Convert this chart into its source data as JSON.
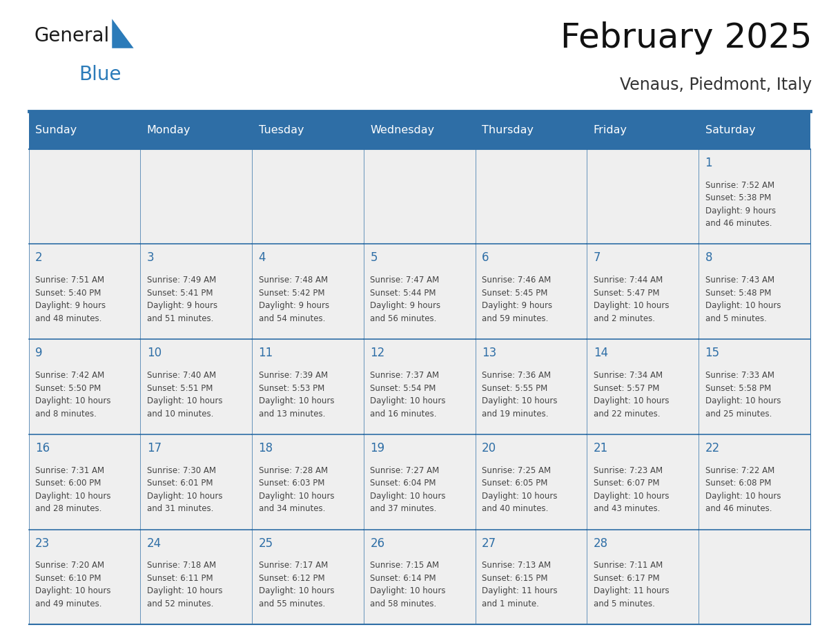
{
  "title": "February 2025",
  "subtitle": "Venaus, Piedmont, Italy",
  "days_of_week": [
    "Sunday",
    "Monday",
    "Tuesday",
    "Wednesday",
    "Thursday",
    "Friday",
    "Saturday"
  ],
  "header_bg_color": "#2E6EA6",
  "header_text_color": "#FFFFFF",
  "cell_bg_color": "#EFEFEF",
  "border_color": "#2E6EA6",
  "day_number_color": "#2E6EA6",
  "text_color": "#444444",
  "logo_general_color": "#1a1a1a",
  "logo_blue_color": "#2B7BB9",
  "calendar_data": [
    [
      {
        "day": null,
        "info": null
      },
      {
        "day": null,
        "info": null
      },
      {
        "day": null,
        "info": null
      },
      {
        "day": null,
        "info": null
      },
      {
        "day": null,
        "info": null
      },
      {
        "day": null,
        "info": null
      },
      {
        "day": 1,
        "info": "Sunrise: 7:52 AM\nSunset: 5:38 PM\nDaylight: 9 hours\nand 46 minutes."
      }
    ],
    [
      {
        "day": 2,
        "info": "Sunrise: 7:51 AM\nSunset: 5:40 PM\nDaylight: 9 hours\nand 48 minutes."
      },
      {
        "day": 3,
        "info": "Sunrise: 7:49 AM\nSunset: 5:41 PM\nDaylight: 9 hours\nand 51 minutes."
      },
      {
        "day": 4,
        "info": "Sunrise: 7:48 AM\nSunset: 5:42 PM\nDaylight: 9 hours\nand 54 minutes."
      },
      {
        "day": 5,
        "info": "Sunrise: 7:47 AM\nSunset: 5:44 PM\nDaylight: 9 hours\nand 56 minutes."
      },
      {
        "day": 6,
        "info": "Sunrise: 7:46 AM\nSunset: 5:45 PM\nDaylight: 9 hours\nand 59 minutes."
      },
      {
        "day": 7,
        "info": "Sunrise: 7:44 AM\nSunset: 5:47 PM\nDaylight: 10 hours\nand 2 minutes."
      },
      {
        "day": 8,
        "info": "Sunrise: 7:43 AM\nSunset: 5:48 PM\nDaylight: 10 hours\nand 5 minutes."
      }
    ],
    [
      {
        "day": 9,
        "info": "Sunrise: 7:42 AM\nSunset: 5:50 PM\nDaylight: 10 hours\nand 8 minutes."
      },
      {
        "day": 10,
        "info": "Sunrise: 7:40 AM\nSunset: 5:51 PM\nDaylight: 10 hours\nand 10 minutes."
      },
      {
        "day": 11,
        "info": "Sunrise: 7:39 AM\nSunset: 5:53 PM\nDaylight: 10 hours\nand 13 minutes."
      },
      {
        "day": 12,
        "info": "Sunrise: 7:37 AM\nSunset: 5:54 PM\nDaylight: 10 hours\nand 16 minutes."
      },
      {
        "day": 13,
        "info": "Sunrise: 7:36 AM\nSunset: 5:55 PM\nDaylight: 10 hours\nand 19 minutes."
      },
      {
        "day": 14,
        "info": "Sunrise: 7:34 AM\nSunset: 5:57 PM\nDaylight: 10 hours\nand 22 minutes."
      },
      {
        "day": 15,
        "info": "Sunrise: 7:33 AM\nSunset: 5:58 PM\nDaylight: 10 hours\nand 25 minutes."
      }
    ],
    [
      {
        "day": 16,
        "info": "Sunrise: 7:31 AM\nSunset: 6:00 PM\nDaylight: 10 hours\nand 28 minutes."
      },
      {
        "day": 17,
        "info": "Sunrise: 7:30 AM\nSunset: 6:01 PM\nDaylight: 10 hours\nand 31 minutes."
      },
      {
        "day": 18,
        "info": "Sunrise: 7:28 AM\nSunset: 6:03 PM\nDaylight: 10 hours\nand 34 minutes."
      },
      {
        "day": 19,
        "info": "Sunrise: 7:27 AM\nSunset: 6:04 PM\nDaylight: 10 hours\nand 37 minutes."
      },
      {
        "day": 20,
        "info": "Sunrise: 7:25 AM\nSunset: 6:05 PM\nDaylight: 10 hours\nand 40 minutes."
      },
      {
        "day": 21,
        "info": "Sunrise: 7:23 AM\nSunset: 6:07 PM\nDaylight: 10 hours\nand 43 minutes."
      },
      {
        "day": 22,
        "info": "Sunrise: 7:22 AM\nSunset: 6:08 PM\nDaylight: 10 hours\nand 46 minutes."
      }
    ],
    [
      {
        "day": 23,
        "info": "Sunrise: 7:20 AM\nSunset: 6:10 PM\nDaylight: 10 hours\nand 49 minutes."
      },
      {
        "day": 24,
        "info": "Sunrise: 7:18 AM\nSunset: 6:11 PM\nDaylight: 10 hours\nand 52 minutes."
      },
      {
        "day": 25,
        "info": "Sunrise: 7:17 AM\nSunset: 6:12 PM\nDaylight: 10 hours\nand 55 minutes."
      },
      {
        "day": 26,
        "info": "Sunrise: 7:15 AM\nSunset: 6:14 PM\nDaylight: 10 hours\nand 58 minutes."
      },
      {
        "day": 27,
        "info": "Sunrise: 7:13 AM\nSunset: 6:15 PM\nDaylight: 11 hours\nand 1 minute."
      },
      {
        "day": 28,
        "info": "Sunrise: 7:11 AM\nSunset: 6:17 PM\nDaylight: 11 hours\nand 5 minutes."
      },
      {
        "day": null,
        "info": null
      }
    ]
  ]
}
